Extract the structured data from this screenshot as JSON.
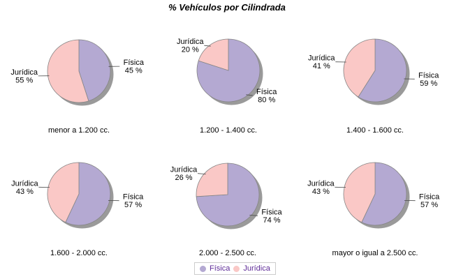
{
  "chart_data": {
    "type": "pie",
    "title": "% Vehículos por Cilindrada",
    "series_names": [
      "Física",
      "Jurídica"
    ],
    "value_suffix": " %",
    "legend_position": "bottom-center",
    "colors": {
      "fisica": "#b4a9d2",
      "juridica": "#fac8c6",
      "shadow": "#9a9a9a",
      "outline": "#858585",
      "leader_line": "#4a4a4a",
      "label_text": "#000000",
      "caption_text": "#000000",
      "legend_text": "#5e2b97",
      "legend_border": "#cccccc",
      "title_text": "#000000"
    },
    "pies": [
      {
        "label": "menor a 1.200 cc.",
        "values": {
          "fisica": 45,
          "juridica": 55
        }
      },
      {
        "label": "1.200 - 1.400 cc.",
        "values": {
          "fisica": 80,
          "juridica": 20
        }
      },
      {
        "label": "1.400 - 1.600 cc.",
        "values": {
          "fisica": 59,
          "juridica": 41
        }
      },
      {
        "label": "1.600 - 2.000 cc.",
        "values": {
          "fisica": 57,
          "juridica": 43
        }
      },
      {
        "label": "2.000 - 2.500 cc.",
        "values": {
          "fisica": 74,
          "juridica": 26
        }
      },
      {
        "label": "mayor o igual a 2.500 cc.",
        "values": {
          "fisica": 57,
          "juridica": 43
        }
      }
    ]
  }
}
